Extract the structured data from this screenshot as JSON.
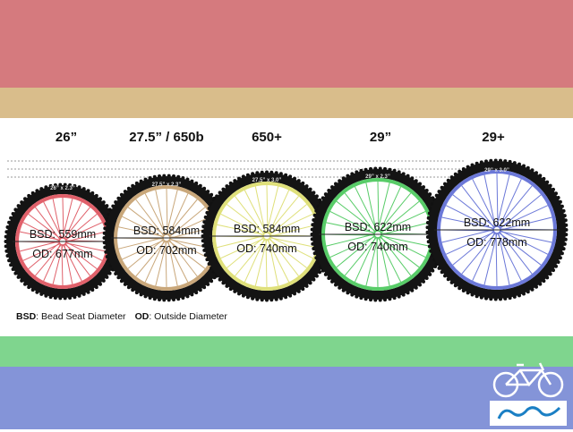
{
  "colors": {
    "band_top": "#d57a7e",
    "band_tan": "#d9bd8b",
    "band_green": "#7fd58e",
    "band_bottom": "#8494d8",
    "logo": "#1a7fc4"
  },
  "wheels": [
    {
      "size": "26”",
      "tire": "26” x 2.3”",
      "bsd": "BSD: 559mm",
      "od": "OD: 677mm",
      "rim_color": "#e0606a"
    },
    {
      "size": "27.5” / 650b",
      "tire": "27.5” x 2.3”",
      "bsd": "BSD: 584mm",
      "od": "OD: 702mm",
      "rim_color": "#c9a77a"
    },
    {
      "size": "650+",
      "tire": "27.5” x 3.0”",
      "bsd": "BSD: 584mm",
      "od": "OD: 740mm",
      "rim_color": "#dfe07a"
    },
    {
      "size": "29”",
      "tire": "29” x 2.3”",
      "bsd": "BSD: 622mm",
      "od": "OD: 740mm",
      "rim_color": "#58cc68"
    },
    {
      "size": "29+",
      "tire": "29” x 3.0”",
      "bsd": "BSD: 622mm",
      "od": "OD: 778mm",
      "rim_color": "#6b78d8"
    }
  ],
  "legend": {
    "bsd_abbr": "BSD",
    "bsd_text": ": Bead Seat Diameter",
    "od_abbr": "OD",
    "od_text": ": Outside Diameter"
  },
  "logo": {
    "icon": "bicycle-icon"
  }
}
